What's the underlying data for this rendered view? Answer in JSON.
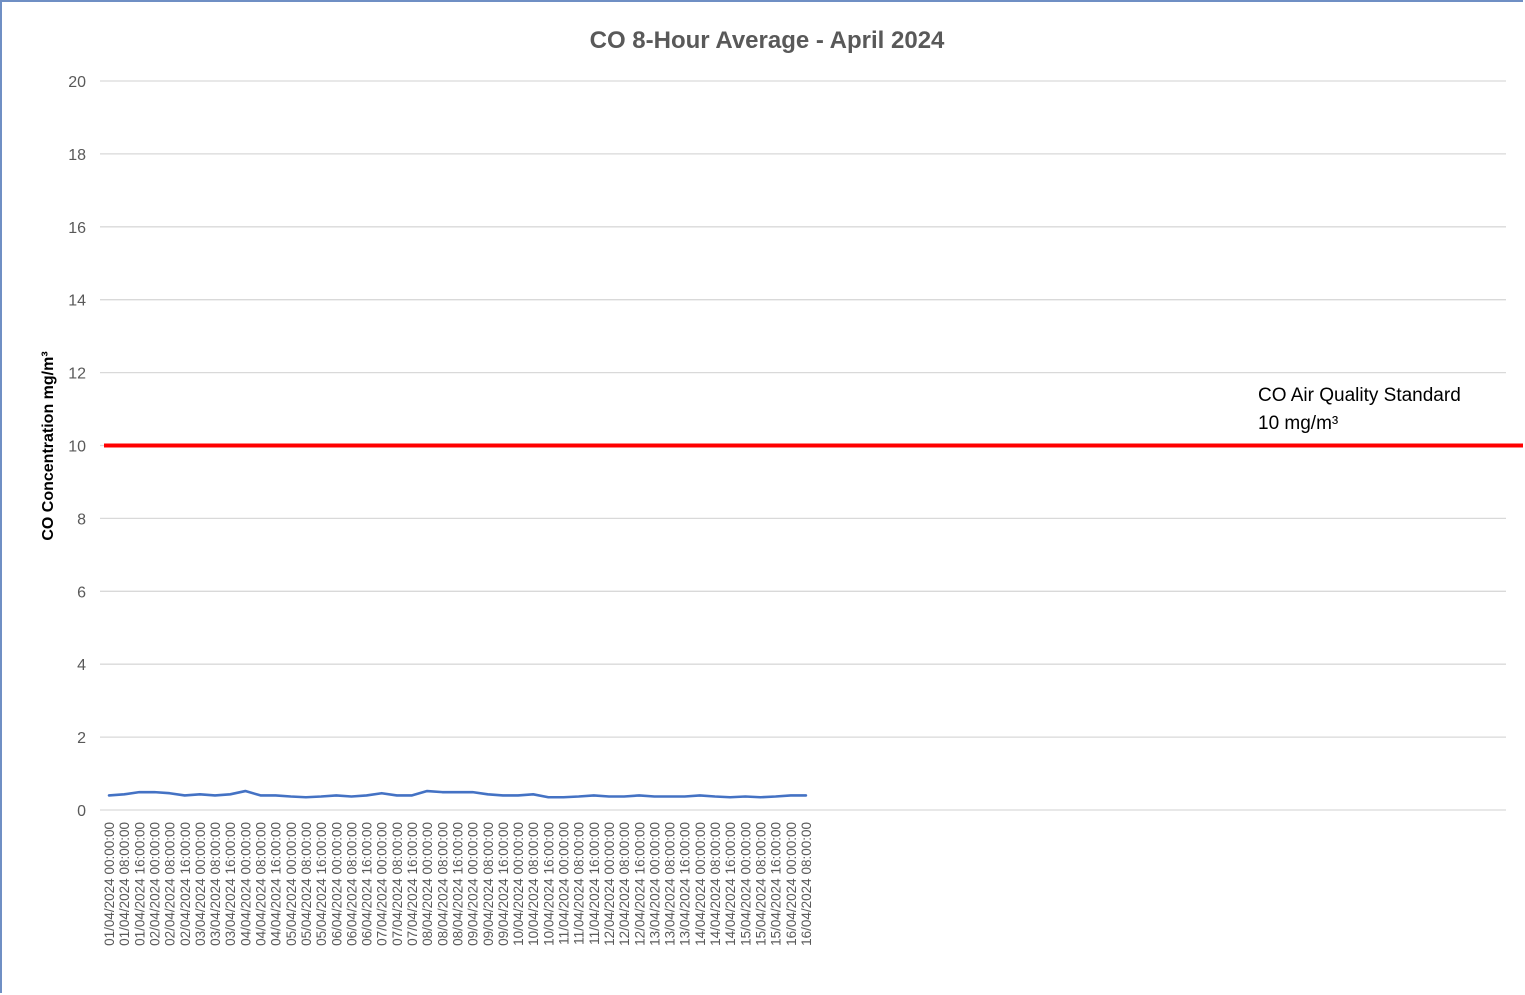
{
  "chart_data": {
    "type": "line",
    "title": "CO 8-Hour Average - April 2024",
    "xlabel": "",
    "ylabel": "CO Concentration mg/m³",
    "ylim": [
      0,
      20
    ],
    "yticks": [
      "0",
      "2",
      "4",
      "6",
      "8",
      "10",
      "12",
      "14",
      "16",
      "18",
      "20"
    ],
    "grid": true,
    "legend": "none",
    "x": [
      "01/04/2024 00:00:00",
      "01/04/2024 08:00:00",
      "01/04/2024 16:00:00",
      "02/04/2024 00:00:00",
      "02/04/2024 08:00:00",
      "02/04/2024 16:00:00",
      "03/04/2024 00:00:00",
      "03/04/2024 08:00:00",
      "03/04/2024 16:00:00",
      "04/04/2024 00:00:00",
      "04/04/2024 08:00:00",
      "04/04/2024 16:00:00",
      "05/04/2024 00:00:00",
      "05/04/2024 08:00:00",
      "05/04/2024 16:00:00",
      "06/04/2024 00:00:00",
      "06/04/2024 08:00:00",
      "06/04/2024 16:00:00",
      "07/04/2024 00:00:00",
      "07/04/2024 08:00:00",
      "07/04/2024 16:00:00",
      "08/04/2024 00:00:00",
      "08/04/2024 08:00:00",
      "08/04/2024 16:00:00",
      "09/04/2024 00:00:00",
      "09/04/2024 08:00:00",
      "09/04/2024 16:00:00",
      "10/04/2024 00:00:00",
      "10/04/2024 08:00:00",
      "10/04/2024 16:00:00",
      "11/04/2024 00:00:00",
      "11/04/2024 08:00:00",
      "11/04/2024 16:00:00",
      "12/04/2024 00:00:00",
      "12/04/2024 08:00:00",
      "12/04/2024 16:00:00",
      "13/04/2024 00:00:00",
      "13/04/2024 08:00:00",
      "13/04/2024 16:00:00",
      "14/04/2024 00:00:00",
      "14/04/2024 08:00:00",
      "14/04/2024 16:00:00",
      "15/04/2024 00:00:00",
      "15/04/2024 08:00:00",
      "15/04/2024 16:00:00",
      "16/04/2024 00:00:00",
      "16/04/2024 08:00:00"
    ],
    "series": [
      {
        "name": "",
        "color": "#4472c4",
        "values": [
          0.4,
          0.43,
          0.49,
          0.49,
          0.46,
          0.4,
          0.43,
          0.4,
          0.43,
          0.52,
          0.4,
          0.4,
          0.37,
          0.35,
          0.37,
          0.4,
          0.37,
          0.4,
          0.46,
          0.4,
          0.4,
          0.52,
          0.49,
          0.49,
          0.49,
          0.43,
          0.4,
          0.4,
          0.43,
          0.35,
          0.35,
          0.37,
          0.4,
          0.37,
          0.37,
          0.4,
          0.37,
          0.37,
          0.37,
          0.4,
          0.37,
          0.35,
          0.37,
          0.35,
          0.37,
          0.4,
          0.4
        ]
      }
    ],
    "reference_line": {
      "value": 10,
      "color": "#ff0000",
      "label_line1": "CO Air Quality Standard",
      "label_line2": "10 mg/m³"
    },
    "colors": {
      "gridline": "#d9d9d9",
      "tick_text": "#595959",
      "frame": "#6f8fc4"
    }
  }
}
